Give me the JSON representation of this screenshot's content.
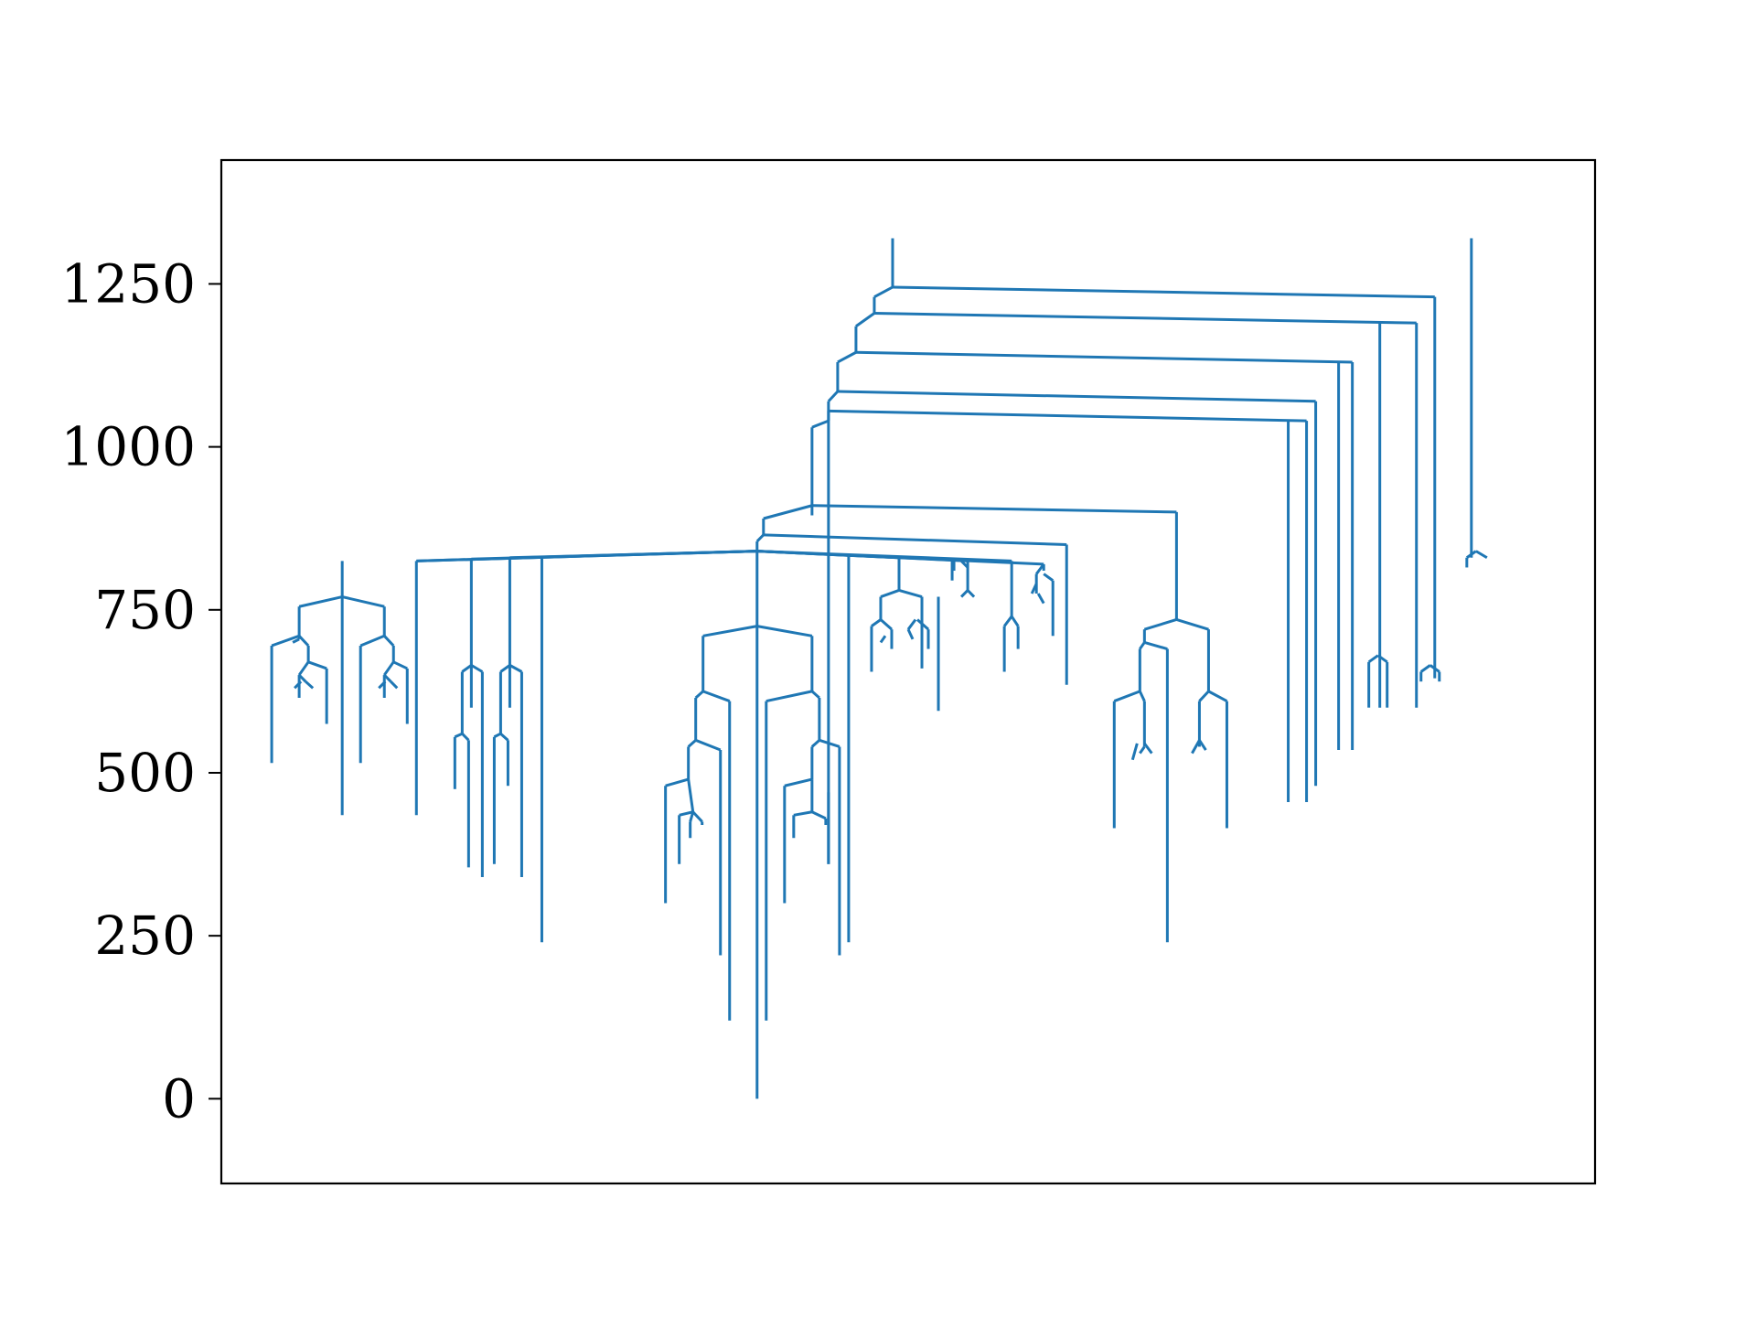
{
  "chart_data": {
    "type": "dendrogram",
    "title": "",
    "xlabel": "",
    "ylabel": "",
    "ylim": [
      -130,
      1440
    ],
    "yticks": [
      0,
      250,
      500,
      750,
      1000,
      1250
    ],
    "ytick_labels": [
      "0",
      "250",
      "500",
      "750",
      "1000",
      "1250"
    ],
    "xticks_shown": false,
    "grid": false,
    "line_color": "#1f77b4",
    "branches": [
      {
        "id": "root-a",
        "x": 78.3,
        "y": 1240,
        "x2": 78.3,
        "y_end": 1320
      },
      {
        "id": "root-b",
        "x": 125,
        "y": 820,
        "x2": 125,
        "y_end": 1320
      },
      {
        "id": "left-trunk",
        "x": 41.3,
        "y": 840,
        "children": [
          {
            "x": 13.2,
            "y": 765,
            "children": [
              {
                "x": 10.5,
                "y": 750,
                "children": [
                  {
                    "x": 8.5,
                    "y": 700,
                    "leaves": [
                      {
                        "x": 8.5,
                        "y": 515
                      },
                      {
                        "x": 10.5,
                        "y": 665,
                        "children": [
                          {
                            "x": 10,
                            "y": 640,
                            "leaves": [
                              {
                                "x": 9.8,
                                "y": 615
                              },
                              {
                                "x": 10.8,
                                "y": 635
                              }
                            ]
                          },
                          {
                            "x": 12.2,
                            "y": 635,
                            "leaves": [
                              {
                                "x": 12.2,
                                "y": 575
                              }
                            ]
                          }
                        ]
                      }
                    ]
                  },
                  {
                    "x": 16.8,
                    "y": 700,
                    "leaves": [
                      {
                        "x": 15,
                        "y": 515
                      },
                      {
                        "x": 17.8,
                        "y": 665,
                        "children": [
                          {
                            "x": 17.1,
                            "y": 640,
                            "leaves": [
                              {
                                "x": 16.5,
                                "y": 615
                              },
                              {
                                "x": 17.7,
                                "y": 635
                              }
                            ]
                          },
                          {
                            "x": 19.3,
                            "y": 635,
                            "leaves": [
                              {
                                "x": 19.3,
                                "y": 575
                              }
                            ]
                          }
                        ]
                      }
                    ]
                  }
                ]
              },
              {
                "x": 13.2,
                "y": 435
              }
            ]
          },
          {
            "x": 21.5,
            "y": 825,
            "children": [
              {
                "x": 20.5,
                "y": 665,
                "children": [
                  {
                    "x": 20.2,
                    "y": 555,
                    "leaves": [
                      {
                        "x": 20,
                        "y": 475
                      },
                      {
                        "x": 21.5,
                        "y": 355
                      }
                    ]
                  },
                  {
                    "x": 22.7,
                    "y": 640,
                    "leaves": [
                      {
                        "x": 22.7,
                        "y": 335
                      }
                    ]
                  }
                ]
              }
            ]
          },
          {
            "x": 25.3,
            "y": 825,
            "children": [
              {
                "x": 24.8,
                "y": 665,
                "children": [
                  {
                    "x": 24.1,
                    "y": 555,
                    "leaves": [
                      {
                        "x": 24,
                        "y": 355
                      },
                      {
                        "x": 25.3,
                        "y": 475
                      }
                    ]
                  },
                  {
                    "x": 26.6,
                    "y": 640,
                    "leaves": [
                      {
                        "x": 26.6,
                        "y": 335
                      }
                    ]
                  }
                ]
              }
            ]
          },
          {
            "x": 28,
            "y": 825,
            "leaves": [
              {
                "x": 28,
                "y": 240
              }
            ]
          },
          {
            "x": 37,
            "y": 725,
            "children": [
              {
                "x": 32.5,
                "y": 710,
                "children": [
                  {
                    "x": 32,
                    "y": 625,
                    "children": [
                      {
                        "x": 31.3,
                        "y": 540,
                        "children": [
                          {
                            "x": 31,
                            "y": 490,
                            "leaves": [
                              {
                                "x": 29.5,
                                "y": 300
                              }
                            ]
                          },
                          {
                            "x": 31.5,
                            "y": 445,
                            "leaves": [
                              {
                                "x": 30.8,
                                "y": 360
                              },
                              {
                                "x": 32.5,
                                "y": 420
                              }
                            ]
                          }
                        ]
                      },
                      {
                        "x": 34,
                        "y": 540,
                        "leaves": [
                          {
                            "x": 34,
                            "y": 220
                          }
                        ]
                      }
                    ]
                  },
                  {
                    "x": 35.3,
                    "y": 610,
                    "leaves": [
                      {
                        "x": 35.3,
                        "y": 120
                      }
                    ]
                  }
                ]
              },
              {
                "x": 37,
                "y": 0
              },
              {
                "x": 41.3,
                "y": 710,
                "children": [
                  {
                    "x": 42,
                    "y": 625,
                    "children": [
                      {
                        "x": 42.8,
                        "y": 540,
                        "children": [
                          {
                            "x": 42.5,
                            "y": 490,
                            "leaves": [
                              {
                                "x": 40.6,
                                "y": 300
                              }
                            ]
                          },
                          {
                            "x": 43,
                            "y": 445,
                            "leaves": [
                              {
                                "x": 41.2,
                                "y": 400
                              },
                              {
                                "x": 43.5,
                                "y": 440
                              }
                            ]
                          }
                        ]
                      },
                      {
                        "x": 44.7,
                        "y": 540,
                        "leaves": [
                          {
                            "x": 44.7,
                            "y": 220
                          }
                        ]
                      }
                    ]
                  },
                  {
                    "x": 38.3,
                    "y": 610,
                    "leaves": [
                      {
                        "x": 38.3,
                        "y": 120
                      }
                    ]
                  }
                ]
              }
            ]
          }
        ]
      }
    ]
  }
}
